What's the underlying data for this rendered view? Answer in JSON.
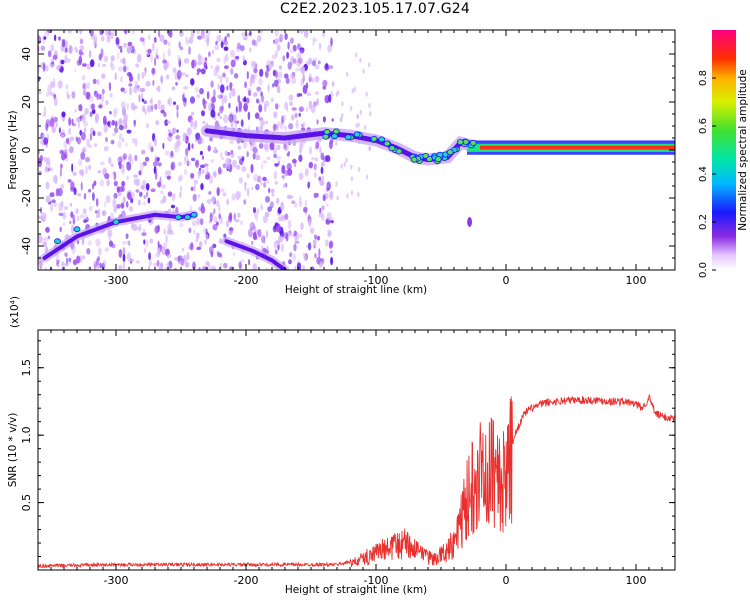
{
  "title": "C2E2.2023.105.17.07.G24",
  "colors": {
    "snr_line": "#e8312f",
    "ridge": "#5a12e6",
    "scatter": "#8a38ee",
    "axis": "#000000"
  },
  "chart_data": [
    {
      "type": "heatmap",
      "xlabel": "Height of straight line (km)",
      "ylabel": "Frequency (Hz)",
      "xlim": [
        -360,
        130
      ],
      "ylim": [
        -50,
        50
      ],
      "xticks": [
        -300,
        -200,
        -100,
        0,
        100
      ],
      "yticks": [
        -40,
        -20,
        0,
        20,
        40
      ],
      "colorbar": {
        "label": "Normalized spectral amplitude",
        "range": [
          0,
          1
        ],
        "ticks": [
          0.0,
          0.2,
          0.4,
          0.6,
          0.8
        ],
        "colormap": "rainbow"
      },
      "features": {
        "noise_region_x": [
          -360,
          -133
        ],
        "ridge": [
          [
            -230,
            8
          ],
          [
            -200,
            6
          ],
          [
            -170,
            5
          ],
          [
            -140,
            7
          ],
          [
            -120,
            6
          ],
          [
            -100,
            4
          ],
          [
            -85,
            1
          ],
          [
            -70,
            -3
          ],
          [
            -60,
            -4
          ],
          [
            -45,
            -3
          ],
          [
            -35,
            3
          ],
          [
            -20,
            1
          ],
          [
            0,
            1
          ],
          [
            50,
            1
          ],
          [
            100,
            1
          ],
          [
            130,
            1
          ]
        ],
        "branch": [
          [
            -355,
            -45
          ],
          [
            -330,
            -36
          ],
          [
            -300,
            -30
          ],
          [
            -270,
            -27
          ],
          [
            -250,
            -28
          ],
          [
            -240,
            -27
          ]
        ],
        "branch2": [
          [
            -215,
            -38
          ],
          [
            -195,
            -42
          ],
          [
            -180,
            -46
          ],
          [
            -170,
            -50
          ]
        ]
      }
    },
    {
      "type": "line",
      "xlabel": "Height of straight line (km)",
      "ylabel": "SNR (10 * v/v)",
      "multiplier_label": "(x10⁴)",
      "xlim": [
        -360,
        130
      ],
      "ylim": [
        0,
        1.78
      ],
      "xticks": [
        -300,
        -200,
        -100,
        0,
        100
      ],
      "yticks": [
        0.5,
        1.0,
        1.5
      ],
      "series": [
        {
          "x": [
            -360,
            -300,
            -200,
            -130,
            -115,
            -105,
            -95,
            -85,
            -75,
            -65,
            -55,
            -45,
            -38,
            -32,
            -26,
            -20,
            -16,
            -12,
            -8,
            -4,
            0,
            5,
            10,
            15,
            20,
            30,
            40,
            50,
            60,
            70,
            80,
            90,
            100,
            105,
            110,
            115,
            120,
            130
          ],
          "values": [
            0.03,
            0.04,
            0.04,
            0.04,
            0.07,
            0.12,
            0.16,
            0.2,
            0.22,
            0.12,
            0.09,
            0.16,
            0.28,
            0.5,
            0.72,
            0.9,
            0.7,
            0.8,
            0.85,
            0.65,
            0.78,
            0.95,
            1.08,
            1.17,
            1.2,
            1.24,
            1.25,
            1.26,
            1.26,
            1.26,
            1.25,
            1.25,
            1.23,
            1.2,
            1.28,
            1.16,
            1.14,
            1.12
          ]
        }
      ]
    }
  ]
}
